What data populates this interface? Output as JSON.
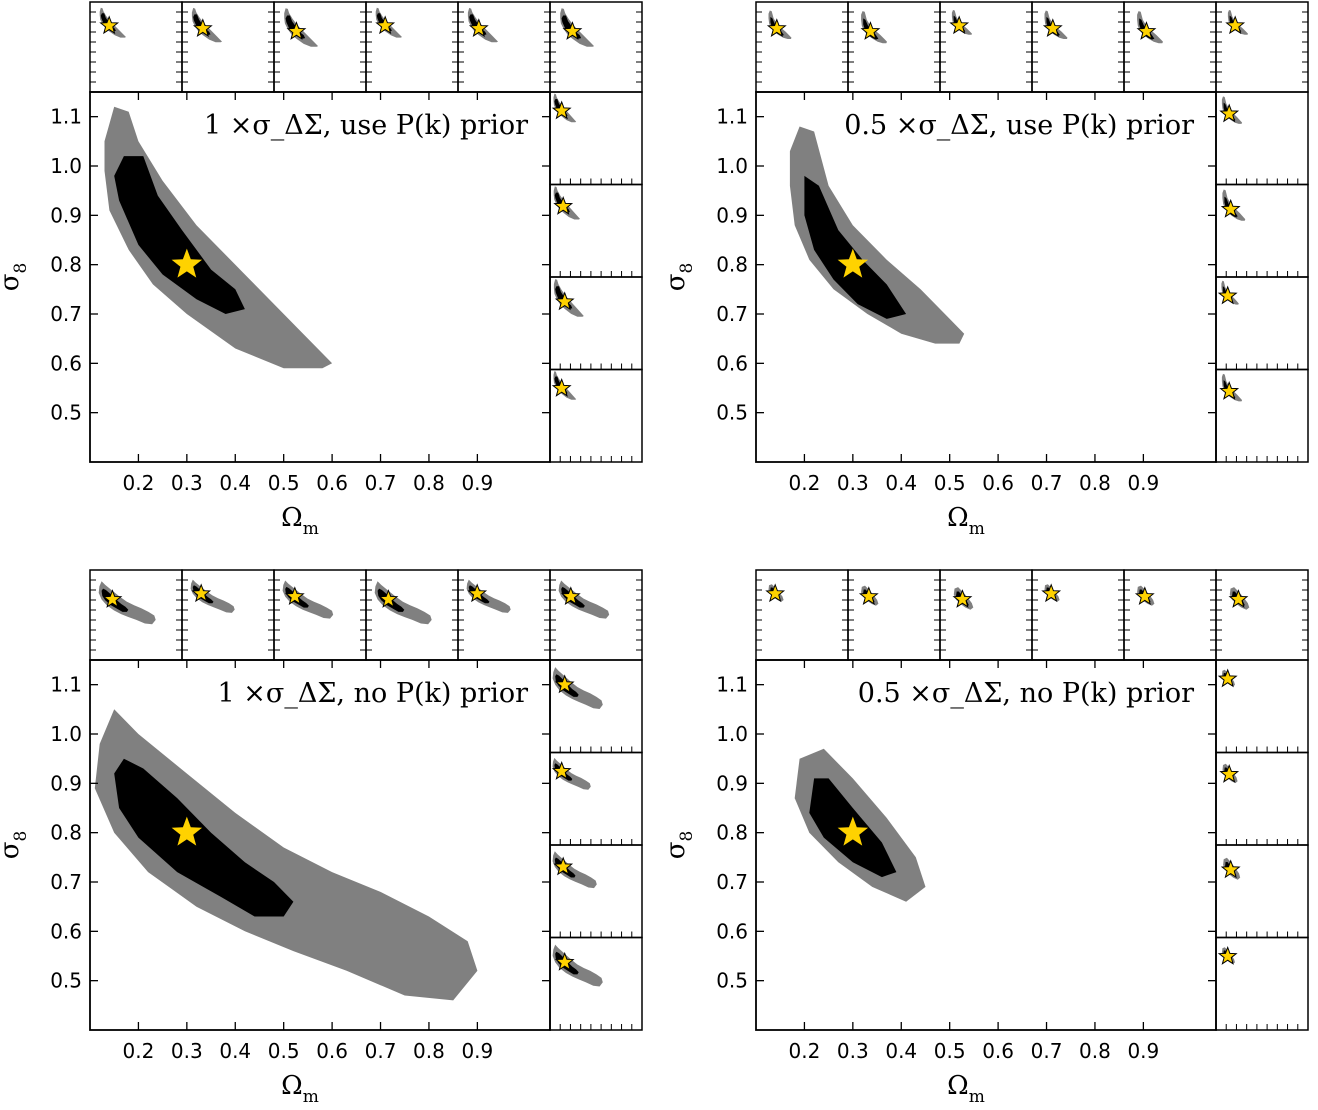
{
  "chart_data": [
    {
      "type": "contour",
      "annotation": "1 ×σ_ΔΣ,  use P(k) prior",
      "xlabel": "Ω_m",
      "ylabel": "σ_8",
      "xlim": [
        0.1,
        1.05
      ],
      "ylim": [
        0.4,
        1.15
      ],
      "x_ticks": [
        "0.2",
        "0.3",
        "0.4",
        "0.5",
        "0.6",
        "0.7",
        "0.8",
        "0.9"
      ],
      "y_ticks": [
        "0.5",
        "0.6",
        "0.7",
        "0.8",
        "0.9",
        "1.0",
        "1.1"
      ],
      "fiducial": {
        "x": 0.3,
        "y": 0.8
      },
      "contour_68": [
        [
          0.17,
          1.02
        ],
        [
          0.21,
          1.02
        ],
        [
          0.24,
          0.94
        ],
        [
          0.29,
          0.87
        ],
        [
          0.35,
          0.79
        ],
        [
          0.4,
          0.75
        ],
        [
          0.42,
          0.71
        ],
        [
          0.38,
          0.7
        ],
        [
          0.32,
          0.73
        ],
        [
          0.25,
          0.78
        ],
        [
          0.2,
          0.84
        ],
        [
          0.16,
          0.93
        ],
        [
          0.15,
          0.98
        ]
      ],
      "contour_95": [
        [
          0.15,
          1.12
        ],
        [
          0.18,
          1.11
        ],
        [
          0.2,
          1.05
        ],
        [
          0.25,
          0.97
        ],
        [
          0.32,
          0.88
        ],
        [
          0.42,
          0.78
        ],
        [
          0.52,
          0.68
        ],
        [
          0.6,
          0.6
        ],
        [
          0.58,
          0.59
        ],
        [
          0.5,
          0.59
        ],
        [
          0.4,
          0.63
        ],
        [
          0.3,
          0.7
        ],
        [
          0.23,
          0.76
        ],
        [
          0.18,
          0.83
        ],
        [
          0.14,
          0.91
        ],
        [
          0.13,
          0.99
        ],
        [
          0.13,
          1.05
        ]
      ],
      "side_panels_top": 6,
      "side_panels_right": 4,
      "colors": {
        "contour_68": "#000000",
        "contour_95": "#808080",
        "fiducial": "#ffd200",
        "axes": "#000000"
      }
    },
    {
      "type": "contour",
      "annotation": "0.5 ×σ_ΔΣ,  use P(k) prior",
      "xlabel": "Ω_m",
      "ylabel": "σ_8",
      "xlim": [
        0.1,
        1.05
      ],
      "ylim": [
        0.4,
        1.15
      ],
      "x_ticks": [
        "0.2",
        "0.3",
        "0.4",
        "0.5",
        "0.6",
        "0.7",
        "0.8",
        "0.9"
      ],
      "y_ticks": [
        "0.5",
        "0.6",
        "0.7",
        "0.8",
        "0.9",
        "1.0",
        "1.1"
      ],
      "fiducial": {
        "x": 0.3,
        "y": 0.8
      },
      "contour_68": [
        [
          0.2,
          0.98
        ],
        [
          0.23,
          0.96
        ],
        [
          0.27,
          0.87
        ],
        [
          0.32,
          0.81
        ],
        [
          0.37,
          0.76
        ],
        [
          0.41,
          0.7
        ],
        [
          0.37,
          0.69
        ],
        [
          0.31,
          0.72
        ],
        [
          0.26,
          0.77
        ],
        [
          0.22,
          0.83
        ],
        [
          0.2,
          0.9
        ]
      ],
      "contour_95": [
        [
          0.19,
          1.08
        ],
        [
          0.22,
          1.07
        ],
        [
          0.25,
          0.96
        ],
        [
          0.3,
          0.88
        ],
        [
          0.37,
          0.81
        ],
        [
          0.44,
          0.75
        ],
        [
          0.5,
          0.69
        ],
        [
          0.53,
          0.66
        ],
        [
          0.52,
          0.64
        ],
        [
          0.47,
          0.64
        ],
        [
          0.4,
          0.66
        ],
        [
          0.33,
          0.7
        ],
        [
          0.26,
          0.75
        ],
        [
          0.21,
          0.81
        ],
        [
          0.18,
          0.88
        ],
        [
          0.17,
          0.96
        ],
        [
          0.17,
          1.03
        ]
      ],
      "side_panels_top": 6,
      "side_panels_right": 4,
      "colors": {
        "contour_68": "#000000",
        "contour_95": "#808080",
        "fiducial": "#ffd200",
        "axes": "#000000"
      }
    },
    {
      "type": "contour",
      "annotation": "1 ×σ_ΔΣ,  no P(k) prior",
      "xlabel": "Ω_m",
      "ylabel": "σ_8",
      "xlim": [
        0.1,
        1.05
      ],
      "ylim": [
        0.4,
        1.15
      ],
      "x_ticks": [
        "0.2",
        "0.3",
        "0.4",
        "0.5",
        "0.6",
        "0.7",
        "0.8",
        "0.9"
      ],
      "y_ticks": [
        "0.5",
        "0.6",
        "0.7",
        "0.8",
        "0.9",
        "1.0",
        "1.1"
      ],
      "fiducial": {
        "x": 0.3,
        "y": 0.8
      },
      "contour_68": [
        [
          0.15,
          0.92
        ],
        [
          0.17,
          0.95
        ],
        [
          0.21,
          0.93
        ],
        [
          0.28,
          0.87
        ],
        [
          0.35,
          0.8
        ],
        [
          0.42,
          0.74
        ],
        [
          0.48,
          0.7
        ],
        [
          0.52,
          0.66
        ],
        [
          0.5,
          0.63
        ],
        [
          0.44,
          0.63
        ],
        [
          0.37,
          0.67
        ],
        [
          0.28,
          0.72
        ],
        [
          0.2,
          0.79
        ],
        [
          0.16,
          0.85
        ]
      ],
      "contour_95": [
        [
          0.12,
          0.98
        ],
        [
          0.15,
          1.05
        ],
        [
          0.2,
          1.0
        ],
        [
          0.3,
          0.92
        ],
        [
          0.4,
          0.84
        ],
        [
          0.5,
          0.77
        ],
        [
          0.6,
          0.72
        ],
        [
          0.7,
          0.68
        ],
        [
          0.8,
          0.63
        ],
        [
          0.88,
          0.58
        ],
        [
          0.9,
          0.52
        ],
        [
          0.85,
          0.46
        ],
        [
          0.75,
          0.47
        ],
        [
          0.63,
          0.52
        ],
        [
          0.52,
          0.56
        ],
        [
          0.42,
          0.6
        ],
        [
          0.32,
          0.65
        ],
        [
          0.22,
          0.72
        ],
        [
          0.15,
          0.8
        ],
        [
          0.11,
          0.89
        ]
      ],
      "side_panels_top": 6,
      "side_panels_right": 4,
      "colors": {
        "contour_68": "#000000",
        "contour_95": "#808080",
        "fiducial": "#ffd200",
        "axes": "#000000"
      }
    },
    {
      "type": "contour",
      "annotation": "0.5 ×σ_ΔΣ,  no P(k) prior",
      "xlabel": "Ω_m",
      "ylabel": "σ_8",
      "xlim": [
        0.1,
        1.05
      ],
      "ylim": [
        0.4,
        1.15
      ],
      "x_ticks": [
        "0.2",
        "0.3",
        "0.4",
        "0.5",
        "0.6",
        "0.7",
        "0.8",
        "0.9"
      ],
      "y_ticks": [
        "0.5",
        "0.6",
        "0.7",
        "0.8",
        "0.9",
        "1.0",
        "1.1"
      ],
      "fiducial": {
        "x": 0.3,
        "y": 0.8
      },
      "contour_68": [
        [
          0.22,
          0.91
        ],
        [
          0.25,
          0.91
        ],
        [
          0.3,
          0.85
        ],
        [
          0.36,
          0.78
        ],
        [
          0.39,
          0.72
        ],
        [
          0.36,
          0.71
        ],
        [
          0.3,
          0.74
        ],
        [
          0.24,
          0.79
        ],
        [
          0.21,
          0.84
        ]
      ],
      "contour_95": [
        [
          0.19,
          0.95
        ],
        [
          0.24,
          0.97
        ],
        [
          0.3,
          0.91
        ],
        [
          0.37,
          0.83
        ],
        [
          0.43,
          0.75
        ],
        [
          0.45,
          0.69
        ],
        [
          0.41,
          0.66
        ],
        [
          0.34,
          0.69
        ],
        [
          0.27,
          0.74
        ],
        [
          0.21,
          0.8
        ],
        [
          0.18,
          0.87
        ]
      ],
      "side_panels_top": 6,
      "side_panels_right": 4,
      "colors": {
        "contour_68": "#000000",
        "contour_95": "#808080",
        "fiducial": "#ffd200",
        "axes": "#000000"
      }
    }
  ]
}
